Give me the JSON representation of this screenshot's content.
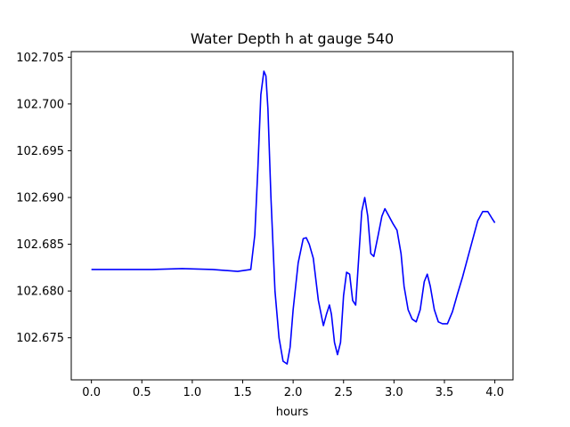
{
  "chart_data": {
    "type": "line",
    "title": "Water Depth h at gauge 540",
    "xlabel": "hours",
    "ylabel": "",
    "xlim": [
      -0.2,
      4.18
    ],
    "ylim": [
      102.6705,
      102.7056
    ],
    "xticks": [
      0.0,
      0.5,
      1.0,
      1.5,
      2.0,
      2.5,
      3.0,
      3.5,
      4.0
    ],
    "xtick_labels": [
      "0.0",
      "0.5",
      "1.0",
      "1.5",
      "2.0",
      "2.5",
      "3.0",
      "3.5",
      "4.0"
    ],
    "yticks": [
      102.675,
      102.68,
      102.685,
      102.69,
      102.695,
      102.7,
      102.705
    ],
    "ytick_labels": [
      "102.675",
      "102.680",
      "102.685",
      "102.690",
      "102.695",
      "102.700",
      "102.705"
    ],
    "grid": false,
    "legend": "none",
    "series": [
      {
        "color": "#0000ff",
        "x": [
          0.0,
          0.3,
          0.6,
          0.9,
          1.2,
          1.45,
          1.58,
          1.62,
          1.65,
          1.68,
          1.71,
          1.73,
          1.75,
          1.78,
          1.82,
          1.86,
          1.9,
          1.94,
          1.97,
          2.0,
          2.05,
          2.1,
          2.13,
          2.16,
          2.2,
          2.25,
          2.3,
          2.33,
          2.36,
          2.38,
          2.41,
          2.44,
          2.47,
          2.5,
          2.53,
          2.56,
          2.59,
          2.62,
          2.65,
          2.68,
          2.71,
          2.74,
          2.77,
          2.8,
          2.84,
          2.88,
          2.91,
          2.95,
          2.99,
          3.03,
          3.07,
          3.1,
          3.14,
          3.18,
          3.22,
          3.26,
          3.3,
          3.33,
          3.36,
          3.4,
          3.44,
          3.48,
          3.53,
          3.58,
          3.63,
          3.68,
          3.73,
          3.78,
          3.83,
          3.88,
          3.93,
          3.97,
          4.0
        ],
        "y": [
          102.6823,
          102.6823,
          102.6823,
          102.6824,
          102.6823,
          102.6821,
          102.6823,
          102.686,
          102.693,
          102.701,
          102.7035,
          102.703,
          102.6995,
          102.69,
          102.68,
          102.675,
          102.6725,
          102.6722,
          102.674,
          102.678,
          102.683,
          102.6856,
          102.6857,
          102.685,
          102.6835,
          102.679,
          102.6763,
          102.6775,
          102.6785,
          102.6775,
          102.6745,
          102.6732,
          102.6745,
          102.6795,
          102.682,
          102.6818,
          102.679,
          102.6785,
          102.6835,
          102.6885,
          102.69,
          102.688,
          102.684,
          102.6837,
          102.6858,
          102.688,
          102.6888,
          102.688,
          102.6872,
          102.6865,
          102.684,
          102.6805,
          102.678,
          102.677,
          102.6767,
          102.678,
          102.681,
          102.6818,
          102.6805,
          102.678,
          102.6767,
          102.6765,
          102.6765,
          102.6778,
          102.6797,
          102.6815,
          102.6835,
          102.6855,
          102.6875,
          102.6885,
          102.6885,
          102.6878,
          102.6873
        ]
      }
    ]
  }
}
